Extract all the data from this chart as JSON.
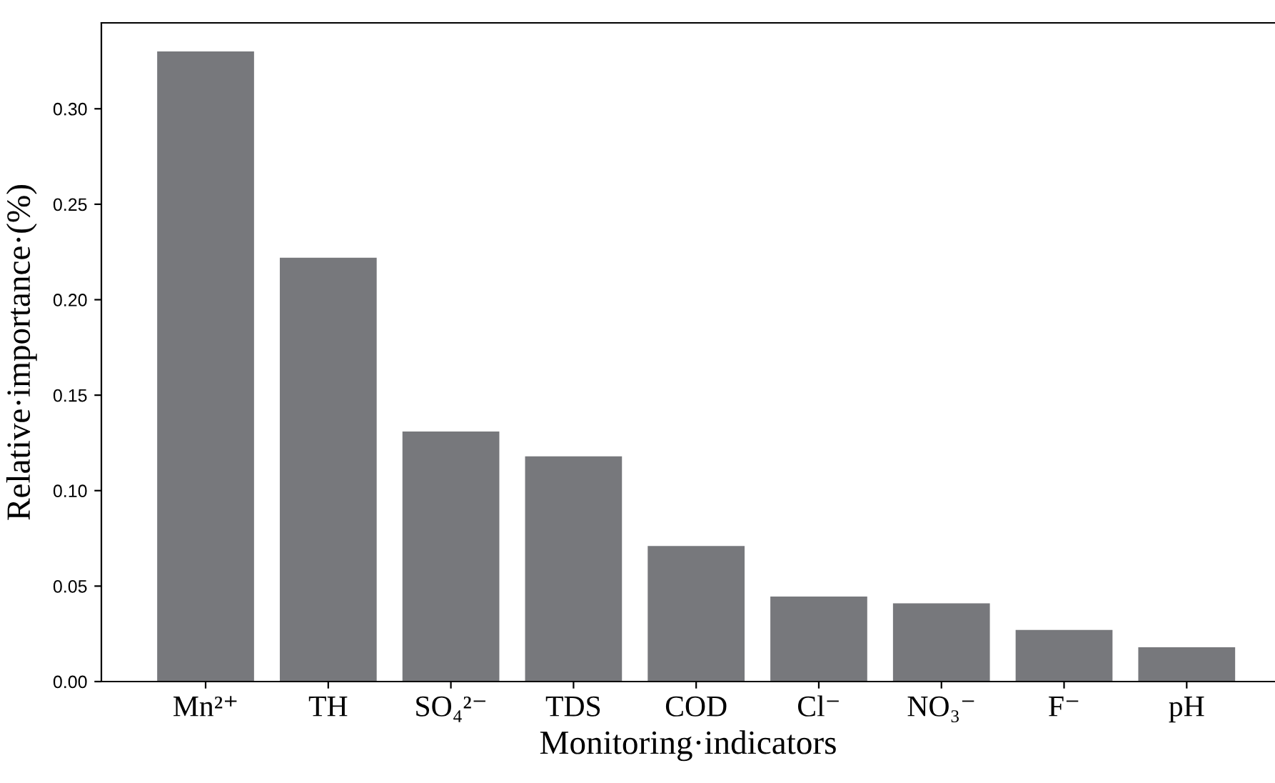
{
  "chart_data": {
    "type": "bar",
    "xlabel": "Monitoring·indicators",
    "ylabel": "Relative·importance·(%)",
    "categories": [
      "Mn²⁺",
      "TH",
      "SO₄²⁻",
      "TDS",
      "COD",
      "Cl⁻",
      "NO₃⁻",
      "F⁻",
      "pH"
    ],
    "values": [
      0.33,
      0.222,
      0.131,
      0.118,
      0.071,
      0.0445,
      0.041,
      0.027,
      0.018
    ],
    "color": "#77787c",
    "ylim": [
      0,
      0.345
    ],
    "yticks": [
      {
        "value": 0,
        "label": "0.00"
      },
      {
        "value": 0.05,
        "label": "0.05"
      },
      {
        "value": 0.1,
        "label": "0.10"
      },
      {
        "value": 0.15,
        "label": "0.15"
      },
      {
        "value": 0.2,
        "label": "0.20"
      },
      {
        "value": 0.25,
        "label": "0.25"
      },
      {
        "value": 0.3,
        "label": "0.30"
      }
    ],
    "grid": false,
    "legend": false
  }
}
